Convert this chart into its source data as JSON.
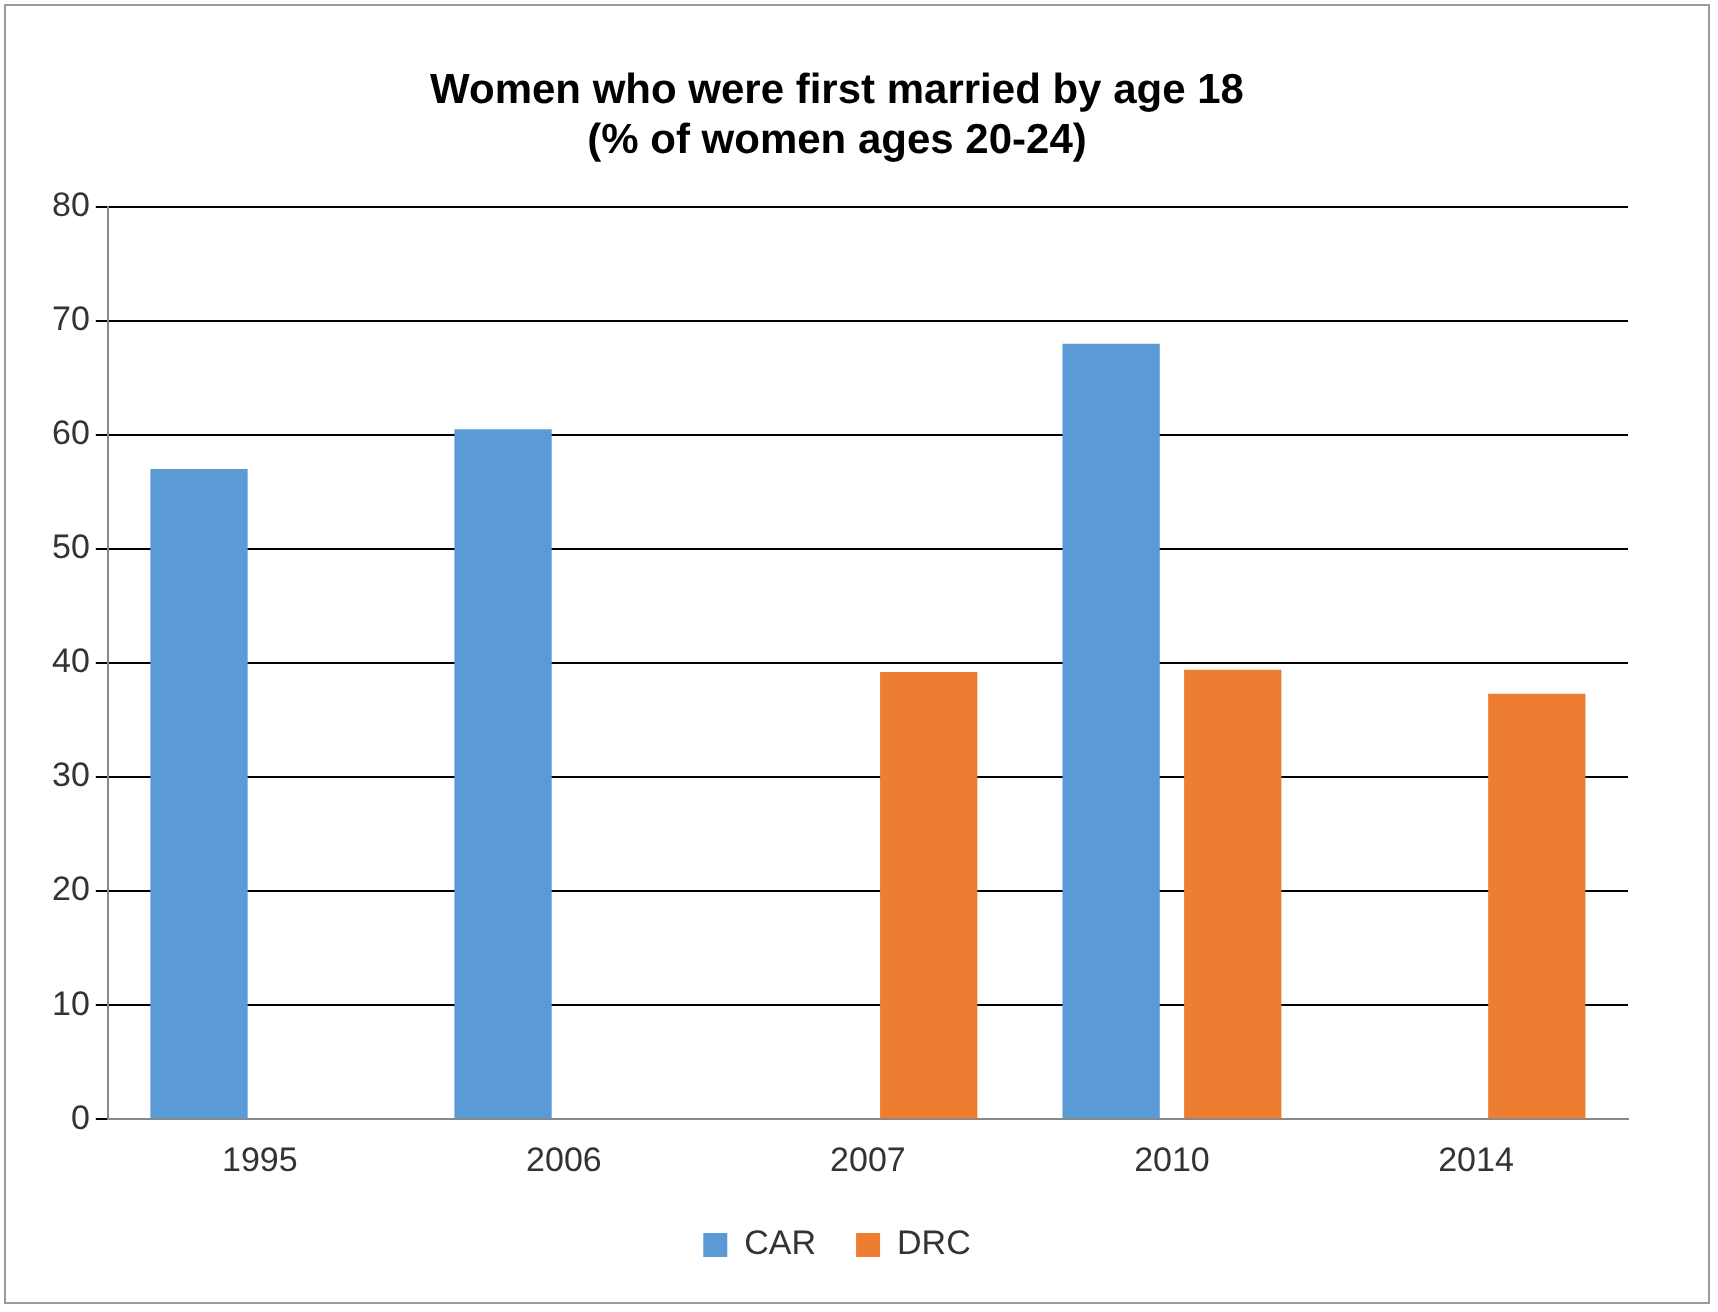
{
  "chart_data": {
    "type": "bar",
    "title": "Women who were first married by age 18\n(% of women ages 20-24)",
    "categories": [
      "1995",
      "2006",
      "2007",
      "2010",
      "2014"
    ],
    "series": [
      {
        "name": "CAR",
        "color": "#5b9bd5",
        "values": [
          57,
          60.5,
          null,
          68,
          null
        ]
      },
      {
        "name": "DRC",
        "color": "#ed7d31",
        "values": [
          null,
          null,
          39.2,
          39.4,
          37.3
        ]
      }
    ],
    "ylim": [
      0,
      80
    ],
    "yticks": [
      0,
      10,
      20,
      30,
      40,
      50,
      60,
      70,
      80
    ],
    "grid": "y",
    "legend": "bottom"
  }
}
